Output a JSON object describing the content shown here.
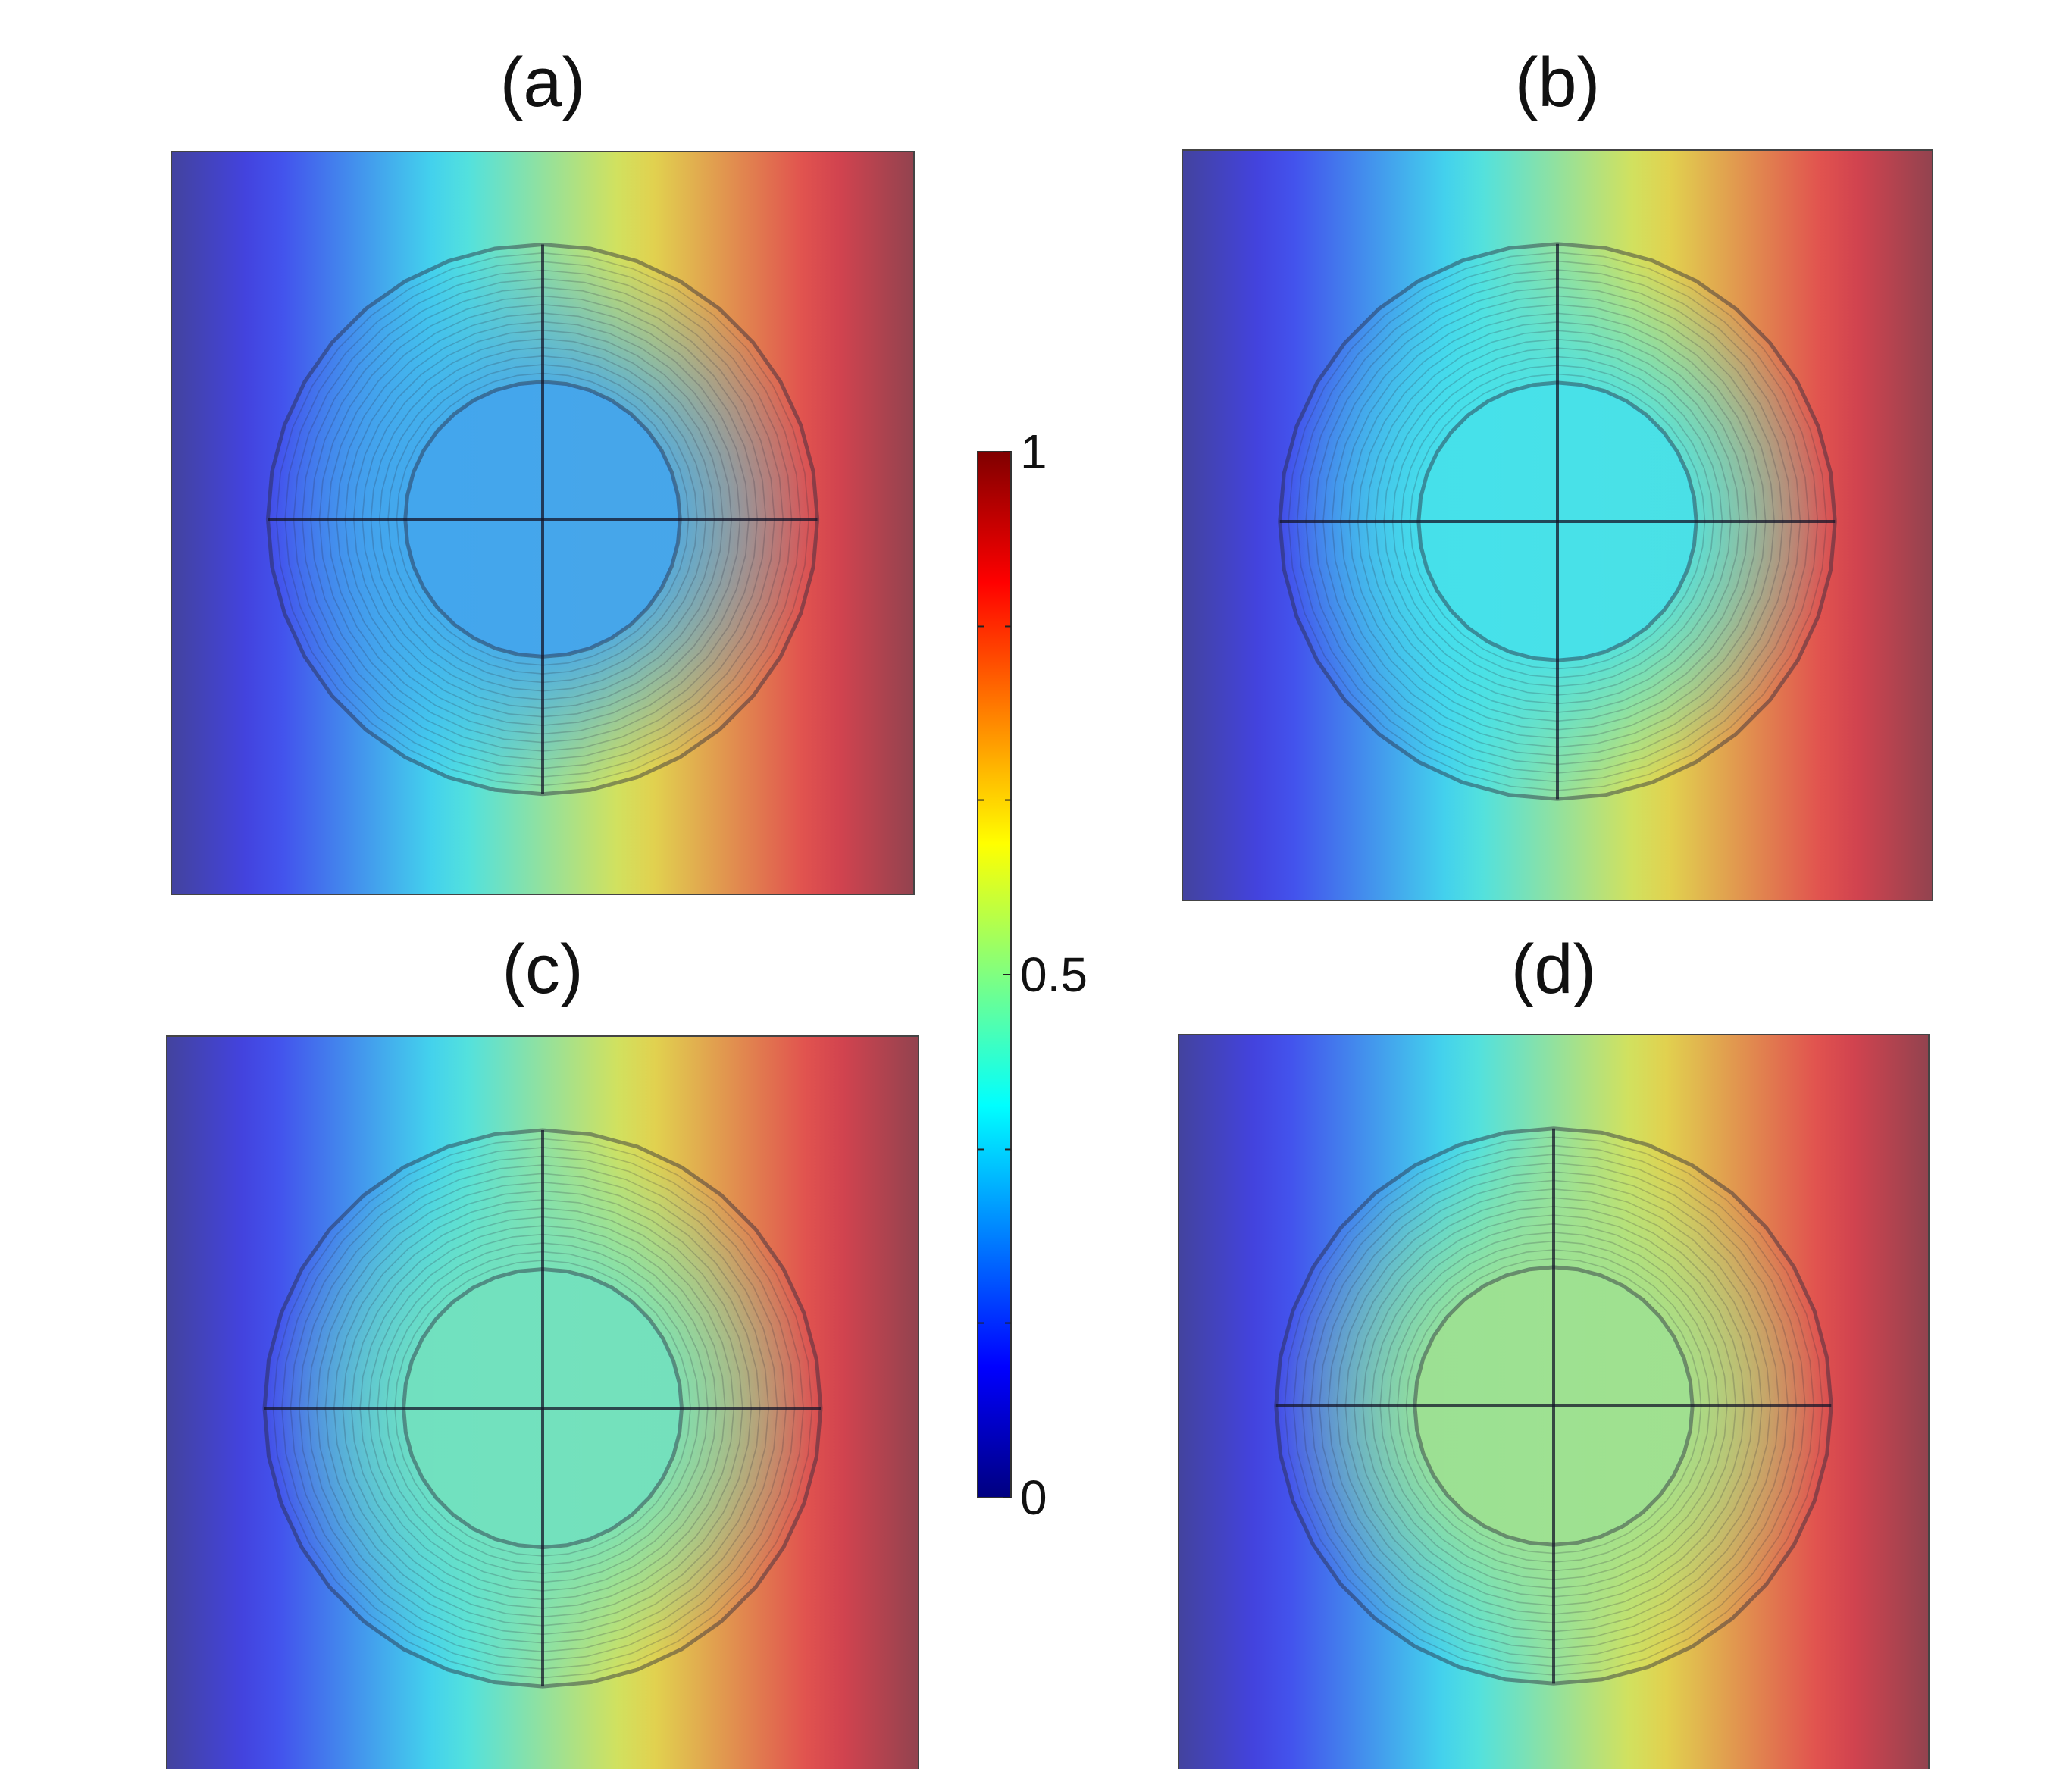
{
  "chart_data": {
    "type": "heatmap",
    "colormap": "jet",
    "value_range": [
      0,
      1
    ],
    "colorbar": {
      "position": "center",
      "tick_labels": [
        "0",
        "0.5",
        "1"
      ],
      "tick_values": [
        0,
        0.5,
        1
      ],
      "minor_ticks": [
        0.167,
        0.333,
        0.667,
        0.833
      ]
    },
    "panels": [
      {
        "label": "(a)",
        "field_left": 0.0,
        "field_right": 1.0,
        "inclusion_core_value": 0.28
      },
      {
        "label": "(b)",
        "field_left": 0.0,
        "field_right": 1.0,
        "inclusion_core_value": 0.38
      },
      {
        "label": "(c)",
        "field_left": 0.0,
        "field_right": 1.0,
        "inclusion_core_value": 0.45
      },
      {
        "label": "(d)",
        "field_left": 0.0,
        "field_right": 1.0,
        "inclusion_core_value": 0.52
      }
    ]
  }
}
